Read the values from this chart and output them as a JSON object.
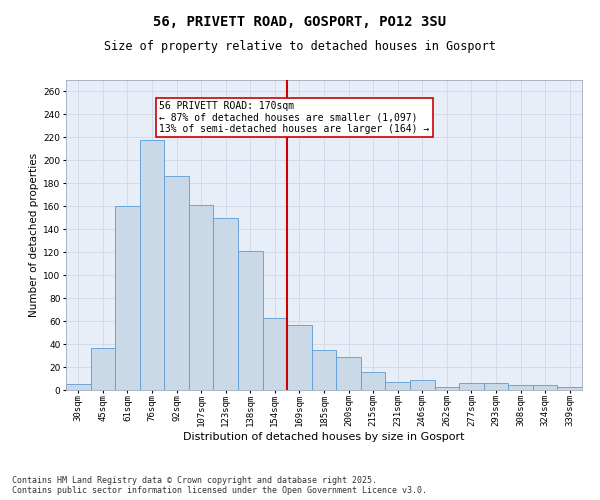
{
  "title": "56, PRIVETT ROAD, GOSPORT, PO12 3SU",
  "subtitle": "Size of property relative to detached houses in Gosport",
  "xlabel": "Distribution of detached houses by size in Gosport",
  "ylabel": "Number of detached properties",
  "categories": [
    "30sqm",
    "45sqm",
    "61sqm",
    "76sqm",
    "92sqm",
    "107sqm",
    "123sqm",
    "138sqm",
    "154sqm",
    "169sqm",
    "185sqm",
    "200sqm",
    "215sqm",
    "231sqm",
    "246sqm",
    "262sqm",
    "277sqm",
    "293sqm",
    "308sqm",
    "324sqm",
    "339sqm"
  ],
  "bar_heights": [
    5,
    37,
    160,
    218,
    186,
    161,
    150,
    121,
    63,
    57,
    35,
    29,
    16,
    7,
    9,
    3,
    6,
    6,
    4,
    4,
    3
  ],
  "bar_color": "#c9d9e8",
  "bar_edge_color": "#5b9bd5",
  "vline_x": 9,
  "vline_color": "#cc0000",
  "annotation_text": "56 PRIVETT ROAD: 170sqm\n← 87% of detached houses are smaller (1,097)\n13% of semi-detached houses are larger (164) →",
  "annotation_box_color": "#cc0000",
  "annotation_bg": "#ffffff",
  "ylim": [
    0,
    270
  ],
  "yticks": [
    0,
    20,
    40,
    60,
    80,
    100,
    120,
    140,
    160,
    180,
    200,
    220,
    240,
    260
  ],
  "grid_color": "#d0d8e8",
  "bg_color": "#e8eef8",
  "footer1": "Contains HM Land Registry data © Crown copyright and database right 2025.",
  "footer2": "Contains public sector information licensed under the Open Government Licence v3.0.",
  "title_fontsize": 10,
  "subtitle_fontsize": 8.5,
  "axis_label_fontsize": 7.5,
  "tick_fontsize": 6.5,
  "annotation_fontsize": 7,
  "footer_fontsize": 6
}
